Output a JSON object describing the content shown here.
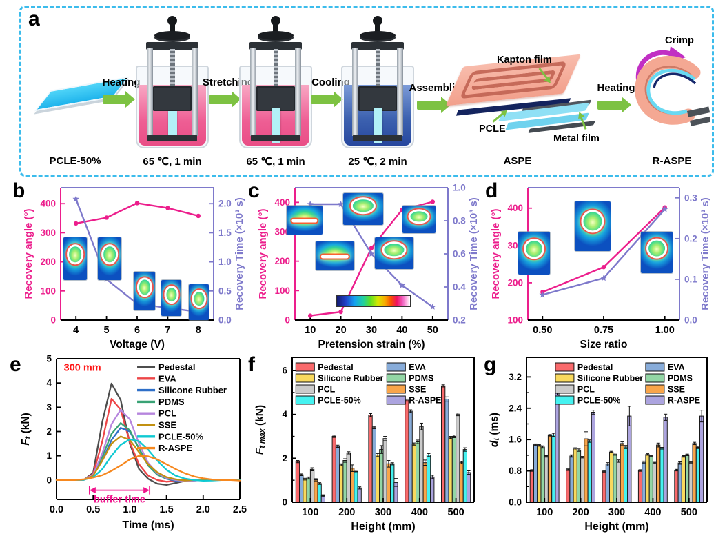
{
  "panel_labels": [
    "a",
    "b",
    "c",
    "d",
    "e",
    "f",
    "g"
  ],
  "panel_a": {
    "sample_label": "PCLE-50%",
    "step_arrows": [
      "Heating",
      "Stretching",
      "Cooling",
      "Assembling",
      "Heating"
    ],
    "beaker_captions": [
      "65 ℃, 1 min",
      "65 ℃, 1 min",
      "25 ℃, 2 min"
    ],
    "aspe_caption": "ASPE",
    "raspe_caption": "R-ASPE",
    "labels": {
      "kapton_film": "Kapton film",
      "pcle": "PCLE",
      "metal_film": "Metal film",
      "crimp": "Crimp"
    },
    "colors": {
      "border": "#3CBCEC",
      "arrow_green": "#7DC242",
      "crimp_magenta": "#C12FC4"
    }
  },
  "chart_data": [
    {
      "id": "b",
      "type": "line-dual",
      "panel_label": "b",
      "xlabel": "Voltage (V)",
      "xlim": [
        3.5,
        8.5
      ],
      "xticks": {
        "values": [
          4,
          5,
          6,
          7,
          8
        ],
        "labels": [
          "4",
          "5",
          "6",
          "7",
          "8"
        ]
      },
      "ylabel_left": "Recovery angle (°)",
      "ylabel_right": "Recovery Time (×10³ s)",
      "ylim_left": [
        0,
        455
      ],
      "yticks_left": {
        "values": [
          0,
          100,
          200,
          300,
          400
        ],
        "labels": [
          "0",
          "100",
          "200",
          "300",
          "400"
        ]
      },
      "ylim_right": [
        0,
        2.275
      ],
      "yticks_right": {
        "values": [
          0,
          0.5,
          1.0,
          1.5,
          2.0
        ],
        "labels": [
          "0.0",
          "0.5",
          "1.0",
          "1.5",
          "2.0"
        ]
      },
      "color_left": "#EC1E8C",
      "color_right": "#7E79CB",
      "x": [
        4,
        5,
        6,
        7,
        8
      ],
      "series": [
        {
          "name": "Recovery angle",
          "axis": "left",
          "marker": "circle",
          "color": "#EC1E8C",
          "values": [
            332,
            352,
            402,
            385,
            358
          ]
        },
        {
          "name": "Recovery Time",
          "axis": "right",
          "marker": "star",
          "color": "#7E79CB",
          "values": [
            2.08,
            0.7,
            0.28,
            0.21,
            0.14
          ]
        }
      ]
    },
    {
      "id": "c",
      "type": "line-dual",
      "panel_label": "c",
      "xlabel": "Pretension strain (%)",
      "xlim": [
        5,
        55
      ],
      "xticks": {
        "values": [
          10,
          20,
          30,
          40,
          50
        ],
        "labels": [
          "10",
          "20",
          "30",
          "40",
          "50"
        ]
      },
      "ylabel_left": "Recovery angle (°)",
      "ylabel_right": "Recovery Time (×10³ s)",
      "ylim_left": [
        0,
        450
      ],
      "yticks_left": {
        "values": [
          0,
          100,
          200,
          300,
          400
        ],
        "labels": [
          "0",
          "100",
          "200",
          "300",
          "400"
        ]
      },
      "ylim_right": [
        0.2,
        1.0
      ],
      "yticks_right": {
        "values": [
          0.2,
          0.4,
          0.6,
          0.8,
          1.0
        ],
        "labels": [
          "0.2",
          "0.4",
          "0.6",
          "0.8",
          "1.0"
        ]
      },
      "color_left": "#EC1E8C",
      "color_right": "#7E79CB",
      "x": [
        10,
        20,
        30,
        40,
        50
      ],
      "series": [
        {
          "name": "Recovery angle",
          "axis": "left",
          "marker": "circle",
          "color": "#EC1E8C",
          "values": [
            15,
            28,
            245,
            375,
            402
          ]
        },
        {
          "name": "Recovery Time",
          "axis": "right",
          "marker": "star",
          "color": "#7E79CB",
          "values": [
            0.9,
            0.9,
            0.6,
            0.41,
            0.28
          ]
        }
      ]
    },
    {
      "id": "d",
      "type": "line-dual",
      "panel_label": "d",
      "xlabel": "Size ratio",
      "xlim": [
        0.44,
        1.06
      ],
      "xticks": {
        "values": [
          0.5,
          0.75,
          1.0
        ],
        "labels": [
          "0.50",
          "0.75",
          "1.00"
        ]
      },
      "ylabel_left": "Recovery angle (°)",
      "ylabel_right": "Recovery Time (×10³ s)",
      "ylim_left": [
        100,
        455
      ],
      "yticks_left": {
        "values": [
          100,
          200,
          300,
          400
        ],
        "labels": [
          "100",
          "200",
          "300",
          "400"
        ]
      },
      "ylim_right": [
        0,
        0.325
      ],
      "yticks_right": {
        "values": [
          0,
          0.1,
          0.2,
          0.3
        ],
        "labels": [
          "0.0",
          "0.1",
          "0.2",
          "0.3"
        ]
      },
      "color_left": "#EC1E8C",
      "color_right": "#7E79CB",
      "x": [
        0.5,
        0.75,
        1.0
      ],
      "series": [
        {
          "name": "Recovery angle",
          "axis": "left",
          "marker": "circle",
          "color": "#EC1E8C",
          "values": [
            175,
            242,
            402
          ]
        },
        {
          "name": "Recovery Time",
          "axis": "right",
          "marker": "star",
          "color": "#7E79CB",
          "values": [
            0.062,
            0.103,
            0.272
          ]
        }
      ]
    },
    {
      "id": "e",
      "type": "line",
      "panel_label": "e",
      "xlabel": "Time (ms)",
      "ylabel_segs": [
        {
          "t": "F",
          "i": true
        },
        {
          "t": "t",
          "sub": true,
          "i": true
        },
        {
          "t": " (kN)"
        }
      ],
      "xlim": [
        0,
        2.5
      ],
      "xticks": {
        "values": [
          0,
          0.5,
          1.0,
          1.5,
          2.0,
          2.5
        ],
        "labels": [
          "0.0",
          "0.5",
          "1.0",
          "1.5",
          "2.0",
          "2.5"
        ]
      },
      "ylim": [
        -0.8,
        5
      ],
      "yticks": {
        "values": [
          0,
          1,
          2,
          3,
          4,
          5
        ],
        "labels": [
          "0",
          "1",
          "2",
          "3",
          "4",
          "5"
        ]
      },
      "x": [
        0,
        0.125,
        0.25,
        0.375,
        0.5,
        0.625,
        0.75,
        0.875,
        1.0,
        1.125,
        1.25,
        1.375,
        1.5,
        1.625,
        1.75,
        1.875,
        2.0,
        2.125,
        2.25,
        2.375,
        2.5
      ],
      "series": [
        {
          "name": "Pedestal",
          "color": "#4D4D4D",
          "values": [
            0,
            0,
            0,
            0.01,
            0.3,
            2.4,
            3.98,
            3.3,
            1.5,
            0.45,
            0.05,
            -0.15,
            -0.2,
            -0.12,
            -0.04,
            0,
            0,
            0,
            0,
            0,
            0
          ]
        },
        {
          "name": "EVA",
          "color": "#ED4547",
          "values": [
            0,
            0,
            0,
            0.01,
            0.25,
            1.6,
            3.35,
            2.9,
            1.55,
            0.65,
            0.18,
            0,
            -0.07,
            -0.03,
            0,
            0,
            0,
            0,
            0,
            0,
            0
          ]
        },
        {
          "name": "Silicone Rubber",
          "color": "#2E6FC8",
          "values": [
            0,
            0,
            0,
            0.01,
            0.2,
            0.8,
            1.65,
            2.15,
            2.0,
            1.3,
            0.6,
            0.22,
            0.05,
            -0.03,
            -0.05,
            -0.02,
            0,
            0,
            0,
            0,
            0
          ]
        },
        {
          "name": "PDMS",
          "color": "#39A275",
          "values": [
            0,
            0,
            0,
            0.01,
            0.22,
            0.95,
            1.9,
            2.35,
            2.05,
            1.3,
            0.6,
            0.22,
            0.06,
            0,
            -0.03,
            -0.02,
            0,
            0,
            0,
            0,
            0
          ]
        },
        {
          "name": "PCL",
          "color": "#B685DD",
          "values": [
            0,
            0,
            0,
            0.01,
            0.22,
            1.1,
            2.3,
            2.9,
            2.5,
            1.5,
            0.7,
            0.28,
            0.08,
            0,
            -0.04,
            -0.02,
            0,
            0,
            0,
            0,
            0
          ]
        },
        {
          "name": "SSE",
          "color": "#C29111",
          "values": [
            0,
            0,
            0,
            0.01,
            0.18,
            0.8,
            1.5,
            1.8,
            1.65,
            1.15,
            0.65,
            0.32,
            0.12,
            0.03,
            -0.02,
            0,
            0,
            0,
            0,
            0,
            0
          ]
        },
        {
          "name": "PCLE-50%",
          "color": "#0EC9D2",
          "values": [
            0,
            0,
            0,
            0.01,
            0.12,
            0.45,
            1.0,
            1.45,
            1.68,
            1.6,
            1.25,
            0.8,
            0.42,
            0.18,
            0.06,
            0,
            -0.03,
            -0.02,
            0,
            0,
            0
          ]
        },
        {
          "name": "R-ASPE",
          "color": "#F6881F",
          "values": [
            0,
            0,
            0,
            0.03,
            0.1,
            0.2,
            0.38,
            0.6,
            0.85,
            1.0,
            0.98,
            0.85,
            0.65,
            0.45,
            0.28,
            0.15,
            0.07,
            0.02,
            0,
            0,
            -0.02
          ]
        }
      ],
      "annotations": {
        "height_label": {
          "text": "300 mm",
          "color": "#FF1414",
          "x": 0.1,
          "y": 4.5
        },
        "buffer": {
          "text": "buffer time",
          "color": "#F0148C",
          "x1": 0.45,
          "x2": 1.27,
          "y": -0.42
        }
      }
    },
    {
      "id": "f",
      "type": "bar",
      "panel_label": "f",
      "xlabel": "Height (mm)",
      "ylabel_segs": [
        {
          "t": "F",
          "i": true
        },
        {
          "t": "t max",
          "sub": true,
          "i": true
        },
        {
          "t": " (kN)"
        }
      ],
      "categories": [
        "100",
        "200",
        "300",
        "400",
        "500"
      ],
      "ylim": [
        0,
        6.6
      ],
      "yticks": {
        "values": [
          0,
          2,
          4,
          6
        ],
        "labels": [
          "0",
          "2",
          "4",
          "6"
        ]
      },
      "yminor": [
        1,
        3,
        5
      ],
      "legend_columns": [
        [
          "Pedestal",
          "Silicone Rubber",
          "PCL",
          "PCLE-50%"
        ],
        [
          "EVA",
          "PDMS",
          "SSE",
          "R-ASPE"
        ]
      ],
      "series": [
        {
          "name": "Pedestal",
          "color": "#F96A6C",
          "values": [
            1.85,
            3.0,
            3.97,
            4.65,
            5.3
          ],
          "errors": [
            0.05,
            0.05,
            0.07,
            0.05,
            0.05
          ]
        },
        {
          "name": "EVA",
          "color": "#88ACD9",
          "values": [
            1.25,
            2.55,
            3.4,
            4.15,
            4.7
          ],
          "errors": [
            0.04,
            0.05,
            0.05,
            0.06,
            0.1
          ]
        },
        {
          "name": "Silicone Rubber",
          "color": "#F8D95E",
          "values": [
            1.05,
            1.7,
            2.15,
            2.65,
            2.95
          ],
          "errors": [
            0.04,
            0.05,
            0.07,
            0.05,
            0.05
          ]
        },
        {
          "name": "PDMS",
          "color": "#93D6A5",
          "values": [
            1.1,
            1.9,
            2.4,
            2.75,
            3.0
          ],
          "errors": [
            0.05,
            0.08,
            0.18,
            0.08,
            0.06
          ]
        },
        {
          "name": "PCL",
          "color": "#CBCBCB",
          "values": [
            1.5,
            2.25,
            2.9,
            3.45,
            4.0
          ],
          "errors": [
            0.07,
            0.05,
            0.1,
            0.15,
            0.06
          ]
        },
        {
          "name": "SSE",
          "color": "#F9A54A",
          "values": [
            1.02,
            1.55,
            1.75,
            1.8,
            1.8
          ],
          "errors": [
            0.05,
            0.15,
            0.15,
            0.12,
            0.05
          ]
        },
        {
          "name": "PCLE-50%",
          "color": "#45F2F0",
          "values": [
            0.85,
            1.4,
            1.75,
            2.15,
            2.4
          ],
          "errors": [
            0.04,
            0.05,
            0.05,
            0.07,
            0.08
          ]
        },
        {
          "name": "R-ASPE",
          "color": "#ACA4DF",
          "values": [
            0.3,
            0.65,
            0.9,
            1.15,
            1.35
          ],
          "errors": [
            0.04,
            0.05,
            0.18,
            0.08,
            0.08
          ]
        }
      ]
    },
    {
      "id": "g",
      "type": "bar",
      "panel_label": "g",
      "xlabel": "Height (mm)",
      "ylabel_segs": [
        {
          "t": "d",
          "i": true
        },
        {
          "t": "t",
          "sub": true,
          "i": true
        },
        {
          "t": " (ms)"
        }
      ],
      "categories": [
        "100",
        "200",
        "300",
        "400",
        "500"
      ],
      "ylim": [
        0,
        3.7
      ],
      "yticks": {
        "values": [
          0,
          0.8,
          1.6,
          2.4,
          3.2
        ],
        "labels": [
          "0.0",
          "0.8",
          "1.6",
          "2.4",
          "3.2"
        ]
      },
      "yminor": [
        0.4,
        1.2,
        2.0,
        2.8
      ],
      "legend_columns": [
        [
          "Pedestal",
          "Silicone Rubber",
          "PCL",
          "PCLE-50%"
        ],
        [
          "EVA",
          "PDMS",
          "SSE",
          "R-ASPE"
        ]
      ],
      "series": [
        {
          "name": "Pedestal",
          "color": "#F96A6C",
          "values": [
            0.81,
            0.83,
            0.79,
            0.81,
            0.82
          ],
          "errors": [
            0.02,
            0.02,
            0.02,
            0.02,
            0.02
          ]
        },
        {
          "name": "EVA",
          "color": "#88ACD9",
          "values": [
            1.47,
            1.18,
            0.97,
            1.02,
            1.0
          ],
          "errors": [
            0.02,
            0.03,
            0.04,
            0.03,
            0.03
          ]
        },
        {
          "name": "Silicone Rubber",
          "color": "#F8D95E",
          "values": [
            1.45,
            1.36,
            1.28,
            1.22,
            1.17
          ],
          "errors": [
            0.02,
            0.03,
            0.02,
            0.02,
            0.02
          ]
        },
        {
          "name": "PDMS",
          "color": "#93D6A5",
          "values": [
            1.41,
            1.33,
            1.23,
            1.18,
            1.21
          ],
          "errors": [
            0.03,
            0.03,
            0.03,
            0.02,
            0.02
          ]
        },
        {
          "name": "PCL",
          "color": "#CBCBCB",
          "values": [
            1.17,
            1.15,
            1.05,
            1.0,
            1.02
          ],
          "errors": [
            0.02,
            0.02,
            0.03,
            0.02,
            0.02
          ]
        },
        {
          "name": "SSE",
          "color": "#F9A54A",
          "values": [
            1.7,
            1.62,
            1.5,
            1.46,
            1.5
          ],
          "errors": [
            0.03,
            0.18,
            0.04,
            0.05,
            0.03
          ]
        },
        {
          "name": "PCLE-50%",
          "color": "#45F2F0",
          "values": [
            1.72,
            1.56,
            1.41,
            1.37,
            1.4
          ],
          "errors": [
            0.04,
            0.03,
            0.04,
            0.03,
            0.03
          ]
        },
        {
          "name": "R-ASPE",
          "color": "#ACA4DF",
          "values": [
            2.86,
            2.3,
            2.2,
            2.17,
            2.2
          ],
          "errors": [
            0.12,
            0.05,
            0.25,
            0.08,
            0.15
          ]
        }
      ]
    }
  ]
}
